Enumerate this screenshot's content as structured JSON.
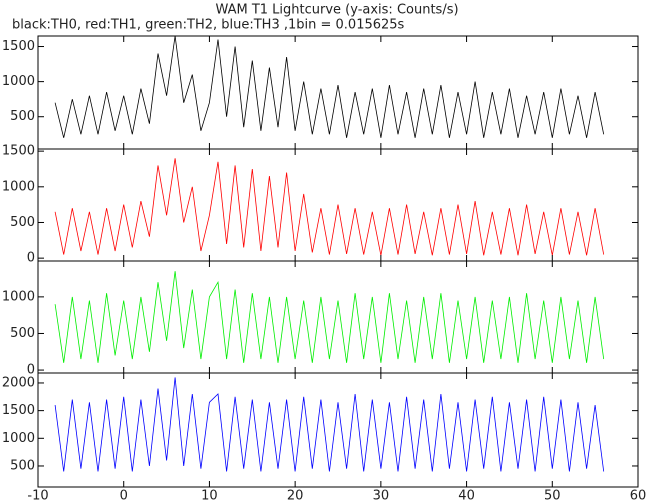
{
  "chart_data": [
    {
      "type": "line",
      "title": "WAM T1 Lightcurve (y-axis: Counts/s)",
      "subtitle": "black:TH0, red:TH1, green:TH2, blue:TH3 ,1bin = 0.015625s",
      "color": "#000000",
      "xlim": [
        -10,
        60
      ],
      "ylim": [
        40,
        1650
      ],
      "yticks": [
        500,
        1000,
        1500
      ],
      "x": [
        -8,
        -7,
        -6,
        -5,
        -4,
        -3,
        -2,
        -1,
        0,
        1,
        2,
        3,
        4,
        5,
        6,
        7,
        8,
        9,
        10,
        11,
        12,
        13,
        14,
        15,
        16,
        17,
        18,
        19,
        20,
        21,
        22,
        23,
        24,
        25,
        26,
        27,
        28,
        29,
        30,
        31,
        32,
        33,
        34,
        35,
        36,
        37,
        38,
        39,
        40,
        41,
        42,
        43,
        44,
        45,
        46,
        47,
        48,
        49,
        50,
        51,
        52,
        53,
        54,
        55,
        56
      ],
      "values": [
        700,
        200,
        750,
        250,
        800,
        250,
        850,
        300,
        800,
        250,
        900,
        400,
        1400,
        800,
        1650,
        700,
        1100,
        300,
        700,
        1600,
        500,
        1500,
        350,
        1300,
        300,
        1200,
        350,
        1350,
        300,
        1000,
        250,
        900,
        250,
        950,
        200,
        850,
        250,
        900,
        200,
        950,
        250,
        850,
        200,
        900,
        250,
        950,
        200,
        850,
        250,
        1000,
        200,
        850,
        250,
        900,
        200,
        800,
        250,
        850,
        200,
        900,
        250,
        800,
        200,
        850,
        250
      ]
    },
    {
      "type": "line",
      "color": "#ff0000",
      "xlim": [
        -10,
        60
      ],
      "ylim": [
        -40,
        1530
      ],
      "yticks": [
        0,
        500,
        1000,
        1500
      ],
      "x": [
        -8,
        -7,
        -6,
        -5,
        -4,
        -3,
        -2,
        -1,
        0,
        1,
        2,
        3,
        4,
        5,
        6,
        7,
        8,
        9,
        10,
        11,
        12,
        13,
        14,
        15,
        16,
        17,
        18,
        19,
        20,
        21,
        22,
        23,
        24,
        25,
        26,
        27,
        28,
        29,
        30,
        31,
        32,
        33,
        34,
        35,
        36,
        37,
        38,
        39,
        40,
        41,
        42,
        43,
        44,
        45,
        46,
        47,
        48,
        49,
        50,
        51,
        52,
        53,
        54,
        55,
        56
      ],
      "values": [
        650,
        50,
        700,
        100,
        650,
        50,
        700,
        100,
        750,
        150,
        800,
        300,
        1300,
        600,
        1400,
        500,
        1000,
        100,
        600,
        1350,
        200,
        1300,
        150,
        1250,
        100,
        1150,
        150,
        1200,
        100,
        900,
        80,
        700,
        50,
        750,
        60,
        700,
        50,
        650,
        40,
        700,
        50,
        750,
        60,
        650,
        40,
        700,
        50,
        750,
        60,
        800,
        40,
        650,
        50,
        700,
        40,
        750,
        60,
        650,
        40,
        700,
        50,
        650,
        40,
        700,
        50
      ]
    },
    {
      "type": "line",
      "color": "#00ee00",
      "xlim": [
        -10,
        60
      ],
      "ylim": [
        -40,
        1490
      ],
      "yticks": [
        0,
        500,
        1000
      ],
      "x": [
        -8,
        -7,
        -6,
        -5,
        -4,
        -3,
        -2,
        -1,
        0,
        1,
        2,
        3,
        4,
        5,
        6,
        7,
        8,
        9,
        10,
        11,
        12,
        13,
        14,
        15,
        16,
        17,
        18,
        19,
        20,
        21,
        22,
        23,
        24,
        25,
        26,
        27,
        28,
        29,
        30,
        31,
        32,
        33,
        34,
        35,
        36,
        37,
        38,
        39,
        40,
        41,
        42,
        43,
        44,
        45,
        46,
        47,
        48,
        49,
        50,
        51,
        52,
        53,
        54,
        55,
        56
      ],
      "values": [
        900,
        100,
        1000,
        150,
        950,
        100,
        1050,
        200,
        950,
        150,
        1000,
        250,
        1200,
        400,
        1350,
        300,
        1100,
        150,
        1000,
        1200,
        150,
        1100,
        100,
        1050,
        150,
        1000,
        100,
        1000,
        150,
        950,
        100,
        1000,
        150,
        950,
        100,
        1050,
        150,
        1000,
        100,
        1050,
        150,
        950,
        100,
        1000,
        150,
        1050,
        100,
        950,
        150,
        1000,
        100,
        950,
        150,
        1000,
        100,
        1050,
        150,
        950,
        100,
        1000,
        150,
        950,
        100,
        1000,
        150
      ]
    },
    {
      "type": "line",
      "color": "#0000ff",
      "xlim": [
        -10,
        60
      ],
      "ylim": [
        120,
        2180
      ],
      "yticks": [
        500,
        1000,
        1500,
        2000
      ],
      "xticks": [
        -10,
        0,
        10,
        20,
        30,
        40,
        50,
        60
      ],
      "x": [
        -8,
        -7,
        -6,
        -5,
        -4,
        -3,
        -2,
        -1,
        0,
        1,
        2,
        3,
        4,
        5,
        6,
        7,
        8,
        9,
        10,
        11,
        12,
        13,
        14,
        15,
        16,
        17,
        18,
        19,
        20,
        21,
        22,
        23,
        24,
        25,
        26,
        27,
        28,
        29,
        30,
        31,
        32,
        33,
        34,
        35,
        36,
        37,
        38,
        39,
        40,
        41,
        42,
        43,
        44,
        45,
        46,
        47,
        48,
        49,
        50,
        51,
        52,
        53,
        54,
        55,
        56
      ],
      "values": [
        1600,
        400,
        1700,
        450,
        1650,
        400,
        1700,
        450,
        1750,
        400,
        1700,
        500,
        1900,
        600,
        2100,
        500,
        1800,
        450,
        1650,
        1800,
        400,
        1750,
        450,
        1700,
        400,
        1650,
        450,
        1700,
        400,
        1750,
        450,
        1700,
        400,
        1650,
        450,
        1800,
        400,
        1700,
        450,
        1650,
        400,
        1750,
        450,
        1700,
        400,
        1800,
        450,
        1650,
        400,
        1700,
        450,
        1750,
        400,
        1650,
        450,
        1700,
        400,
        1750,
        450,
        1700,
        400,
        1650,
        450,
        1600,
        400
      ]
    }
  ]
}
